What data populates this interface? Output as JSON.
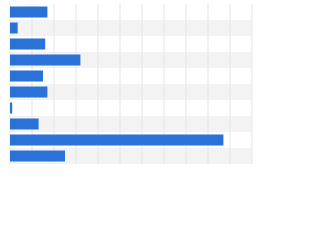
{
  "chart_data": {
    "type": "bar",
    "orientation": "horizontal",
    "categories": [
      null,
      null,
      null,
      null,
      null,
      null,
      null,
      null,
      null,
      null
    ],
    "values": [
      1.7,
      0.35,
      1.6,
      3.2,
      1.5,
      1.7,
      0.1,
      1.3,
      9.7,
      2.5
    ],
    "color": "#2a72d8",
    "xlim": [
      0,
      11
    ],
    "xticks": [
      0,
      1,
      2,
      3,
      4,
      5,
      6,
      7,
      8,
      9,
      10,
      11
    ],
    "grid": true
  }
}
